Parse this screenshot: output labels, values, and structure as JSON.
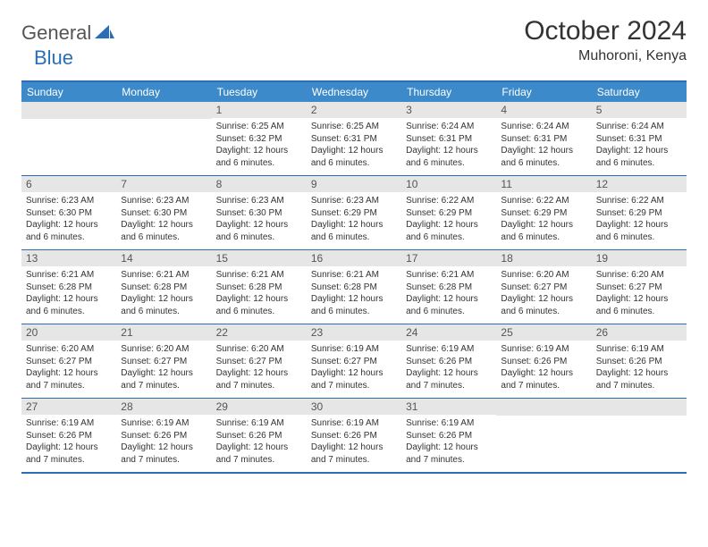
{
  "brand": {
    "part1": "General",
    "part2": "Blue"
  },
  "title": "October 2024",
  "location": "Muhoroni, Kenya",
  "colors": {
    "header_bg": "#3c8ac9",
    "border": "#2a6fb5",
    "daynum_bg": "#e6e6e6",
    "text": "#333333"
  },
  "day_headers": [
    "Sunday",
    "Monday",
    "Tuesday",
    "Wednesday",
    "Thursday",
    "Friday",
    "Saturday"
  ],
  "weeks": [
    [
      {
        "n": "",
        "sr": "",
        "ss": "",
        "dl": ""
      },
      {
        "n": "",
        "sr": "",
        "ss": "",
        "dl": ""
      },
      {
        "n": "1",
        "sr": "Sunrise: 6:25 AM",
        "ss": "Sunset: 6:32 PM",
        "dl": "Daylight: 12 hours and 6 minutes."
      },
      {
        "n": "2",
        "sr": "Sunrise: 6:25 AM",
        "ss": "Sunset: 6:31 PM",
        "dl": "Daylight: 12 hours and 6 minutes."
      },
      {
        "n": "3",
        "sr": "Sunrise: 6:24 AM",
        "ss": "Sunset: 6:31 PM",
        "dl": "Daylight: 12 hours and 6 minutes."
      },
      {
        "n": "4",
        "sr": "Sunrise: 6:24 AM",
        "ss": "Sunset: 6:31 PM",
        "dl": "Daylight: 12 hours and 6 minutes."
      },
      {
        "n": "5",
        "sr": "Sunrise: 6:24 AM",
        "ss": "Sunset: 6:31 PM",
        "dl": "Daylight: 12 hours and 6 minutes."
      }
    ],
    [
      {
        "n": "6",
        "sr": "Sunrise: 6:23 AM",
        "ss": "Sunset: 6:30 PM",
        "dl": "Daylight: 12 hours and 6 minutes."
      },
      {
        "n": "7",
        "sr": "Sunrise: 6:23 AM",
        "ss": "Sunset: 6:30 PM",
        "dl": "Daylight: 12 hours and 6 minutes."
      },
      {
        "n": "8",
        "sr": "Sunrise: 6:23 AM",
        "ss": "Sunset: 6:30 PM",
        "dl": "Daylight: 12 hours and 6 minutes."
      },
      {
        "n": "9",
        "sr": "Sunrise: 6:23 AM",
        "ss": "Sunset: 6:29 PM",
        "dl": "Daylight: 12 hours and 6 minutes."
      },
      {
        "n": "10",
        "sr": "Sunrise: 6:22 AM",
        "ss": "Sunset: 6:29 PM",
        "dl": "Daylight: 12 hours and 6 minutes."
      },
      {
        "n": "11",
        "sr": "Sunrise: 6:22 AM",
        "ss": "Sunset: 6:29 PM",
        "dl": "Daylight: 12 hours and 6 minutes."
      },
      {
        "n": "12",
        "sr": "Sunrise: 6:22 AM",
        "ss": "Sunset: 6:29 PM",
        "dl": "Daylight: 12 hours and 6 minutes."
      }
    ],
    [
      {
        "n": "13",
        "sr": "Sunrise: 6:21 AM",
        "ss": "Sunset: 6:28 PM",
        "dl": "Daylight: 12 hours and 6 minutes."
      },
      {
        "n": "14",
        "sr": "Sunrise: 6:21 AM",
        "ss": "Sunset: 6:28 PM",
        "dl": "Daylight: 12 hours and 6 minutes."
      },
      {
        "n": "15",
        "sr": "Sunrise: 6:21 AM",
        "ss": "Sunset: 6:28 PM",
        "dl": "Daylight: 12 hours and 6 minutes."
      },
      {
        "n": "16",
        "sr": "Sunrise: 6:21 AM",
        "ss": "Sunset: 6:28 PM",
        "dl": "Daylight: 12 hours and 6 minutes."
      },
      {
        "n": "17",
        "sr": "Sunrise: 6:21 AM",
        "ss": "Sunset: 6:28 PM",
        "dl": "Daylight: 12 hours and 6 minutes."
      },
      {
        "n": "18",
        "sr": "Sunrise: 6:20 AM",
        "ss": "Sunset: 6:27 PM",
        "dl": "Daylight: 12 hours and 6 minutes."
      },
      {
        "n": "19",
        "sr": "Sunrise: 6:20 AM",
        "ss": "Sunset: 6:27 PM",
        "dl": "Daylight: 12 hours and 6 minutes."
      }
    ],
    [
      {
        "n": "20",
        "sr": "Sunrise: 6:20 AM",
        "ss": "Sunset: 6:27 PM",
        "dl": "Daylight: 12 hours and 7 minutes."
      },
      {
        "n": "21",
        "sr": "Sunrise: 6:20 AM",
        "ss": "Sunset: 6:27 PM",
        "dl": "Daylight: 12 hours and 7 minutes."
      },
      {
        "n": "22",
        "sr": "Sunrise: 6:20 AM",
        "ss": "Sunset: 6:27 PM",
        "dl": "Daylight: 12 hours and 7 minutes."
      },
      {
        "n": "23",
        "sr": "Sunrise: 6:19 AM",
        "ss": "Sunset: 6:27 PM",
        "dl": "Daylight: 12 hours and 7 minutes."
      },
      {
        "n": "24",
        "sr": "Sunrise: 6:19 AM",
        "ss": "Sunset: 6:26 PM",
        "dl": "Daylight: 12 hours and 7 minutes."
      },
      {
        "n": "25",
        "sr": "Sunrise: 6:19 AM",
        "ss": "Sunset: 6:26 PM",
        "dl": "Daylight: 12 hours and 7 minutes."
      },
      {
        "n": "26",
        "sr": "Sunrise: 6:19 AM",
        "ss": "Sunset: 6:26 PM",
        "dl": "Daylight: 12 hours and 7 minutes."
      }
    ],
    [
      {
        "n": "27",
        "sr": "Sunrise: 6:19 AM",
        "ss": "Sunset: 6:26 PM",
        "dl": "Daylight: 12 hours and 7 minutes."
      },
      {
        "n": "28",
        "sr": "Sunrise: 6:19 AM",
        "ss": "Sunset: 6:26 PM",
        "dl": "Daylight: 12 hours and 7 minutes."
      },
      {
        "n": "29",
        "sr": "Sunrise: 6:19 AM",
        "ss": "Sunset: 6:26 PM",
        "dl": "Daylight: 12 hours and 7 minutes."
      },
      {
        "n": "30",
        "sr": "Sunrise: 6:19 AM",
        "ss": "Sunset: 6:26 PM",
        "dl": "Daylight: 12 hours and 7 minutes."
      },
      {
        "n": "31",
        "sr": "Sunrise: 6:19 AM",
        "ss": "Sunset: 6:26 PM",
        "dl": "Daylight: 12 hours and 7 minutes."
      },
      {
        "n": "",
        "sr": "",
        "ss": "",
        "dl": ""
      },
      {
        "n": "",
        "sr": "",
        "ss": "",
        "dl": ""
      }
    ]
  ]
}
